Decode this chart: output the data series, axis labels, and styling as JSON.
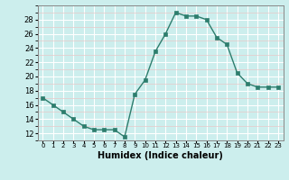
{
  "x": [
    0,
    1,
    2,
    3,
    4,
    5,
    6,
    7,
    8,
    9,
    10,
    11,
    12,
    13,
    14,
    15,
    16,
    17,
    18,
    19,
    20,
    21,
    22,
    23
  ],
  "y": [
    17,
    16,
    15,
    14,
    13,
    12.5,
    12.5,
    12.5,
    11.5,
    17.5,
    19.5,
    23.5,
    26,
    29,
    28.5,
    28.5,
    28,
    25.5,
    24.5,
    20.5,
    19,
    18.5,
    18.5,
    18.5
  ],
  "xlabel": "Humidex (Indice chaleur)",
  "xlim": [
    -0.5,
    23.5
  ],
  "ylim": [
    11,
    30
  ],
  "yticks": [
    12,
    14,
    16,
    18,
    20,
    22,
    24,
    26,
    28
  ],
  "line_color": "#2d7d6d",
  "bg_color": "#cceeed",
  "grid_major_color": "#ffffff",
  "grid_minor_color": "#e8c8c8",
  "marker_size": 2.5,
  "line_width": 1.0,
  "xlabel_fontsize": 7,
  "ytick_fontsize": 6,
  "xtick_fontsize": 5
}
